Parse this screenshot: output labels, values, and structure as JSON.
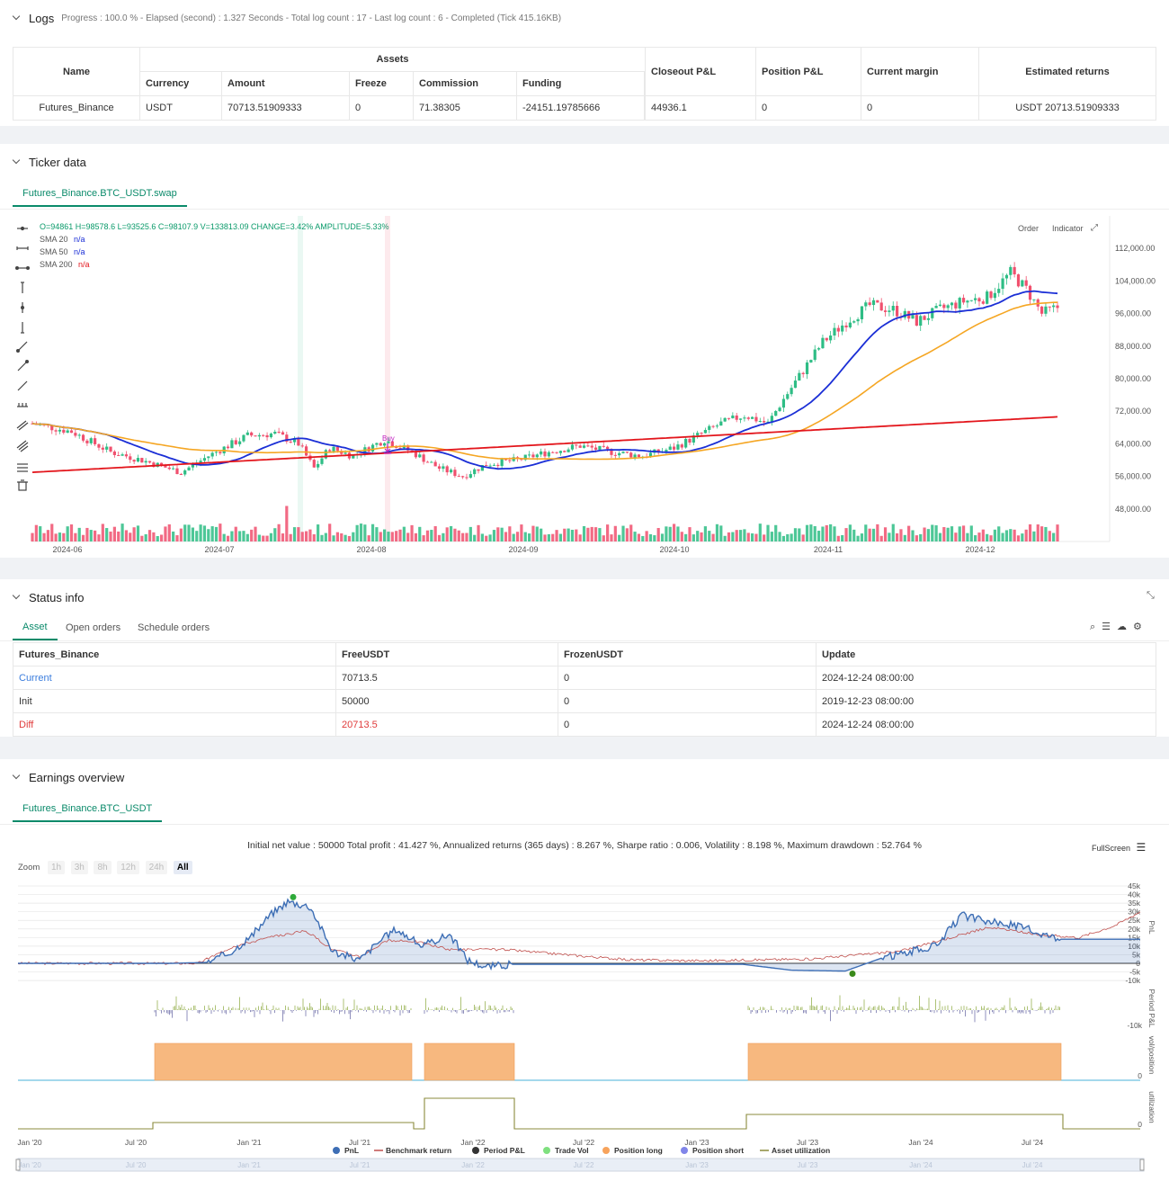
{
  "logs": {
    "title": "Logs",
    "progress": "Progress : 100.0 % - Elapsed (second) : 1.327  Seconds - Total log count : 17 - Last log count : 6 - Completed (Tick 415.16KB)",
    "headers": {
      "name": "Name",
      "assets": "Assets",
      "currency": "Currency",
      "amount": "Amount",
      "freeze": "Freeze",
      "commission": "Commission",
      "funding": "Funding",
      "closeout": "Closeout P&L",
      "position": "Position P&L",
      "margin": "Current margin",
      "returns": "Estimated returns"
    },
    "row": {
      "name": "Futures_Binance",
      "currency": "USDT",
      "amount": "70713.51909333",
      "freeze": "0",
      "commission": "71.38305",
      "funding": "-24151.19785666",
      "closeout": "44936.1",
      "position": "0",
      "margin": "0",
      "returns": "USDT 20713.51909333"
    }
  },
  "ticker": {
    "title": "Ticker data",
    "tab": "Futures_Binance.BTC_USDT.swap",
    "ohlc": "O=94861 H=98578.6 L=93525.6 C=98107.9 V=133813.09 CHANGE=3.42% AMPLITUDE=5.33%",
    "sma20": "SMA 20",
    "sma50": "SMA 50",
    "sma200": "SMA 200",
    "na": "n/a",
    "order_btn": "Order",
    "indicator_btn": "Indicator",
    "buy_label": "Buy",
    "y_ticks": [
      "112,000.00",
      "104,000.00",
      "96,000.00",
      "88,000.00",
      "80,000.00",
      "72,000.00",
      "64,000.00",
      "56,000.00",
      "48,000.00"
    ],
    "x_ticks": [
      "2024-06",
      "2024-07",
      "2024-08",
      "2024-09",
      "2024-10",
      "2024-11",
      "2024-12"
    ],
    "colors": {
      "up": "#2ebd85",
      "down": "#f0506e",
      "sma20": "#1b2fd6",
      "sma50": "#f5a623",
      "sma200": "#e3161c"
    }
  },
  "status": {
    "title": "Status info",
    "tabs": [
      "Asset",
      "Open orders",
      "Schedule orders"
    ],
    "headers": [
      "Futures_Binance",
      "FreeUSDT",
      "FrozenUSDT",
      "Update"
    ],
    "rows": [
      [
        "Current",
        "70713.5",
        "0",
        "2024-12-24 08:00:00"
      ],
      [
        "Init",
        "50000",
        "0",
        "2019-12-23 08:00:00"
      ],
      [
        "Diff",
        "20713.5",
        "0",
        "2024-12-24 08:00:00"
      ]
    ]
  },
  "earnings": {
    "title": "Earnings overview",
    "tab": "Futures_Binance.BTC_USDT",
    "summary": "Initial net value : 50000 Total profit : 41.427 %, Annualized returns (365 days) : 8.267 %, Sharpe ratio : 0.006, Volatility : 8.198 %, Maximum drawdown : 52.764 %",
    "fullscreen": "FullScreen",
    "zoom_label": "Zoom",
    "zoom_buttons": [
      "1h",
      "3h",
      "8h",
      "12h",
      "24h",
      "All"
    ],
    "pnl_ticks": [
      "45k",
      "40k",
      "35k",
      "30k",
      "25k",
      "20k",
      "15k",
      "10k",
      "5k",
      "0",
      "-5k",
      "-10k"
    ],
    "pnl_label": "PnL",
    "period_label": "Period P&L",
    "period_tick": "-10k",
    "pos_label": "vol/position",
    "pos_tick": "0",
    "util_label": "utilization",
    "util_tick": "0",
    "x_ticks": [
      "Jan '20",
      "Jul '20",
      "Jan '21",
      "Jul '21",
      "Jan '22",
      "Jul '22",
      "Jan '23",
      "Jul '23",
      "Jan '24",
      "Jul '24"
    ],
    "legend": [
      "PnL",
      "Benchmark return",
      "Period P&L",
      "Trade Vol",
      "Position long",
      "Position short",
      "Asset utilization"
    ],
    "legend_colors": [
      "#3d6eb5",
      "#c0504d",
      "#333333",
      "#7fe07f",
      "#f7a35c",
      "#8085e9",
      "#8b8b3c"
    ]
  }
}
